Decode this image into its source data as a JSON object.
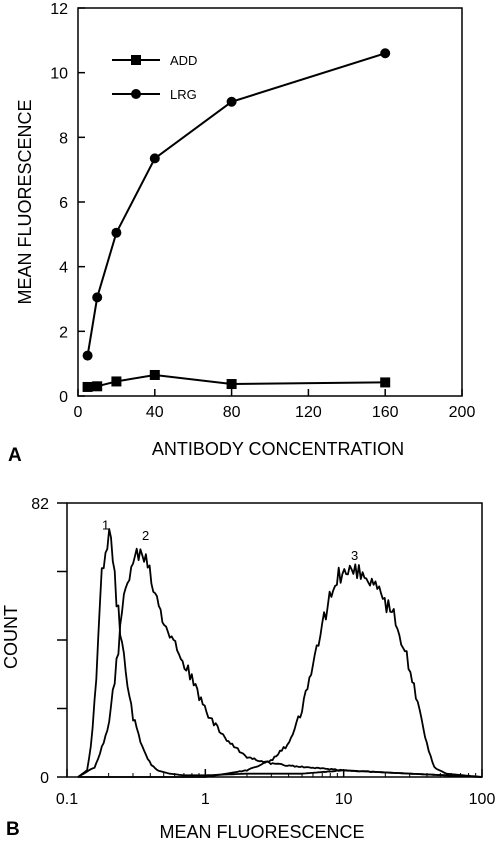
{
  "chart_data": [
    {
      "panel": "A",
      "type": "line",
      "xlabel": "ANTIBODY CONCENTRATION",
      "ylabel": "MEAN FLUORESCENCE",
      "xlim": [
        0,
        200
      ],
      "ylim": [
        0,
        12
      ],
      "xticks": [
        0,
        40,
        80,
        120,
        160,
        200
      ],
      "yticks": [
        0,
        2,
        4,
        6,
        8,
        10,
        12
      ],
      "legend_position": "top-left",
      "grid": false,
      "series": [
        {
          "name": "ADD",
          "marker": "square",
          "x": [
            5,
            10,
            20,
            40,
            80,
            160
          ],
          "y": [
            0.28,
            0.3,
            0.45,
            0.65,
            0.37,
            0.42
          ]
        },
        {
          "name": "LRG",
          "marker": "circle",
          "x": [
            5,
            10,
            20,
            40,
            80,
            160
          ],
          "y": [
            1.25,
            3.05,
            5.05,
            7.35,
            9.1,
            10.6
          ]
        }
      ]
    },
    {
      "panel": "B",
      "type": "line",
      "xlabel": "MEAN FLUORESCENCE",
      "ylabel": "COUNT",
      "xscale": "log",
      "xlim": [
        0.1,
        100
      ],
      "ylim": [
        0,
        82
      ],
      "xticks": [
        0.1,
        1,
        10,
        100
      ],
      "xtick_labels": [
        "0.1",
        "1",
        "10",
        "100"
      ],
      "yticks": [
        0,
        82
      ],
      "ytick_labels": [
        "0",
        "82"
      ],
      "grid": false,
      "series": [
        {
          "name": "1",
          "x": [
            0.12,
            0.14,
            0.15,
            0.16,
            0.17,
            0.18,
            0.19,
            0.2,
            0.21,
            0.22,
            0.24,
            0.27,
            0.3,
            0.35,
            0.4,
            0.45,
            0.55,
            0.7,
            1.0,
            2.0,
            5.0,
            10.0,
            30.0,
            100.0
          ],
          "y": [
            0,
            2,
            10,
            25,
            45,
            62,
            70,
            72,
            68,
            60,
            45,
            30,
            18,
            9,
            4,
            2,
            1,
            0.5,
            0.5,
            1,
            1,
            2,
            1,
            0
          ]
        },
        {
          "name": "2",
          "x": [
            0.12,
            0.16,
            0.2,
            0.23,
            0.26,
            0.29,
            0.32,
            0.35,
            0.38,
            0.42,
            0.5,
            0.6,
            0.75,
            0.9,
            1.1,
            1.5,
            2.0,
            3.0,
            5.0,
            10.0,
            30.0,
            100.0
          ],
          "y": [
            0,
            3,
            15,
            35,
            55,
            64,
            67,
            68,
            65,
            58,
            48,
            40,
            32,
            24,
            17,
            10,
            6,
            4,
            3,
            2,
            1,
            0
          ]
        },
        {
          "name": "3",
          "x": [
            0.12,
            1.0,
            2.0,
            3.0,
            4.0,
            5.0,
            6.0,
            7.0,
            8.0,
            9.0,
            10.0,
            12.0,
            15.0,
            18.0,
            22.0,
            27.0,
            33.0,
            40.0,
            45.0,
            55.0,
            100.0
          ],
          "y": [
            0,
            0,
            2,
            5,
            10,
            20,
            33,
            45,
            55,
            60,
            62,
            62,
            60,
            55,
            50,
            40,
            25,
            10,
            3,
            1,
            0
          ]
        }
      ],
      "peak_labels": [
        {
          "text": "1",
          "x": 0.19,
          "y": 74
        },
        {
          "text": "2",
          "x": 0.37,
          "y": 71
        },
        {
          "text": "3",
          "x": 12,
          "y": 65
        }
      ]
    }
  ]
}
